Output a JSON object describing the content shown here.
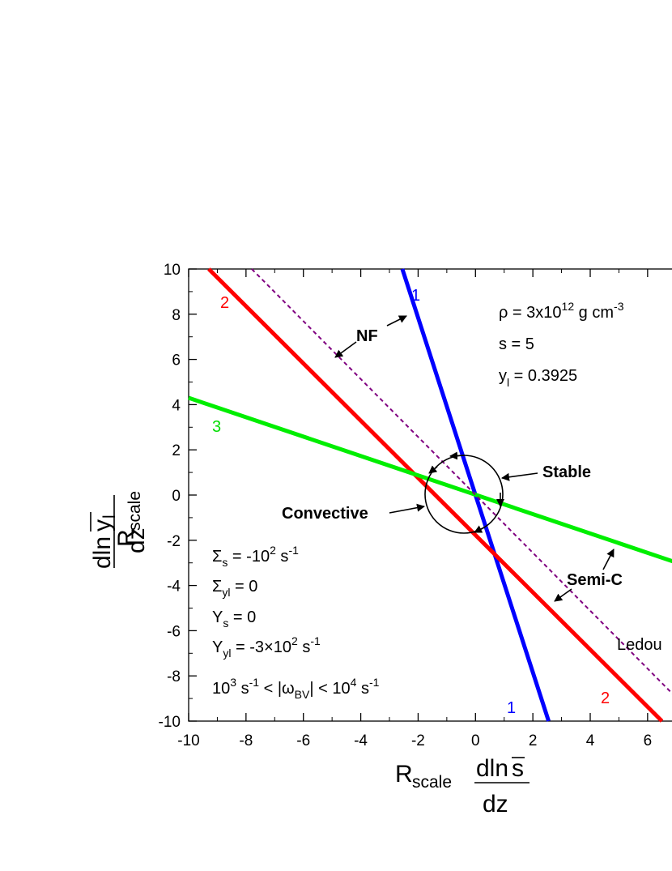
{
  "chart_data": {
    "type": "line",
    "title": "",
    "xlim": [
      -10,
      7.5
    ],
    "ylim": [
      -10,
      10
    ],
    "x_ticks": [
      -10,
      -8,
      -6,
      -4,
      -2,
      0,
      2,
      4,
      6
    ],
    "y_ticks": [
      -10,
      -8,
      -6,
      -4,
      -2,
      0,
      2,
      4,
      6,
      8,
      10
    ],
    "x_tick_labels": [
      "-10",
      "-8",
      "-6",
      "-4",
      "-2",
      "0",
      "2",
      "4",
      "6"
    ],
    "y_tick_labels": [
      "-10",
      "-8",
      "-6",
      "-4",
      "-2",
      "0",
      "2",
      "4",
      "6",
      "8",
      "10"
    ],
    "xlabel": {
      "prefix": "R",
      "sub": "scale",
      "num": "dln",
      "num_bar": "s",
      "den": "dz"
    },
    "ylabel": {
      "prefix": "R",
      "sub": "scale",
      "num": "dln",
      "num_bar": "y",
      "num_bar_sub": "l",
      "den": "dz"
    },
    "grid": false,
    "series": [
      {
        "label_top": "1",
        "label_bottom": "1",
        "color": "#0000ff",
        "points": [
          [
            -2.55,
            10
          ],
          [
            2.55,
            -10
          ]
        ]
      },
      {
        "label_top": "2",
        "label_bottom": "2",
        "color": "#ff0000",
        "points": [
          [
            -9.3,
            10
          ],
          [
            6.5,
            -10
          ]
        ]
      },
      {
        "label_top": "3",
        "color": "#00ee00",
        "points": [
          [
            -10,
            4.3
          ],
          [
            7.5,
            -3.2
          ]
        ]
      },
      {
        "label": "Ledou",
        "color": "#800080",
        "dashed": true,
        "points": [
          [
            -7.8,
            10
          ],
          [
            7.5,
            -9.6
          ]
        ]
      }
    ],
    "annotations": {
      "rho": {
        "main": "ρ = 3x10",
        "sup": "12",
        "rest": " g cm",
        "sup2": "-3"
      },
      "s": "s = 5",
      "yl": {
        "main": "y",
        "sub": "l",
        "rest": " = 0.3925"
      },
      "sigma_s": {
        "main": "Σ",
        "sub": "s",
        "rest": " = -10",
        "sup": "2",
        "rest2": " s",
        "sup2": "-1"
      },
      "sigma_yl": {
        "main": "Σ",
        "sub": "yl",
        "rest": " = 0"
      },
      "upsilon_s": {
        "main": "Υ",
        "sub": "s",
        "rest": " = 0"
      },
      "upsilon_yl": {
        "main": "Υ",
        "sub": "yl",
        "rest": " = -3×10",
        "sup": "2",
        "rest2": " s",
        "sup2": "-1"
      },
      "omega": {
        "a": "10",
        "a_sup": "3",
        "b": " s",
        "b_sup": "-1",
        "c": " < |ω",
        "c_sub": "BV",
        "d": "| < 10",
        "d_sup": "4",
        "e": " s",
        "e_sup": "-1"
      },
      "nf": "NF",
      "stable": "Stable",
      "convective": "Convective",
      "semic": "Semi-C"
    }
  }
}
